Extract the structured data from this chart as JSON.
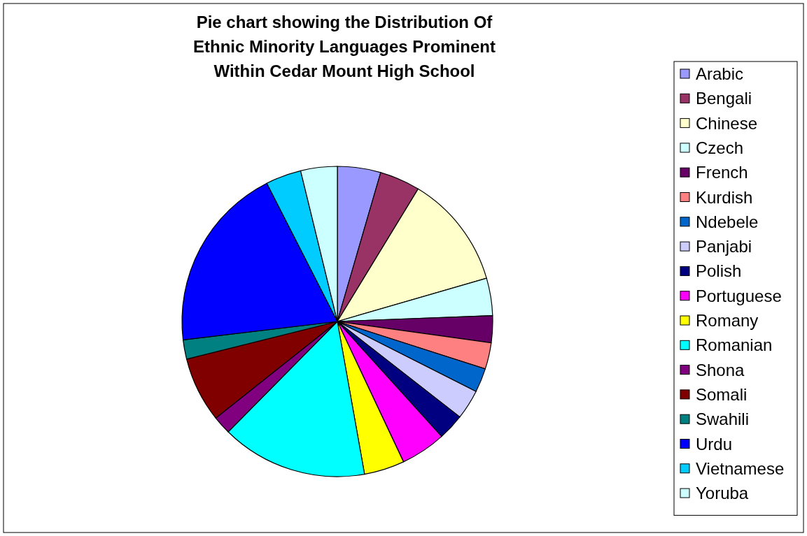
{
  "chart_data": {
    "type": "pie",
    "title": "Pie chart showing the Distribution Of Ethnic Minority Languages Prominent Within Cedar Mount High School",
    "categories": [
      "Arabic",
      "Bengali",
      "Chinese",
      "Czech",
      "French",
      "Kurdish",
      "Ndebele",
      "Panjabi",
      "Polish",
      "Portuguese",
      "Romany",
      "Romanian",
      "Shona",
      "Somali",
      "Swahili",
      "Urdu",
      "Vietnamese",
      "Yoruba"
    ],
    "values": [
      4.5,
      4.2,
      11.8,
      3.9,
      2.8,
      2.75,
      2.5,
      3.1,
      2.75,
      4.7,
      4.2,
      15.2,
      1.9,
      6.8,
      2.0,
      19.4,
      3.7,
      3.8
    ],
    "colors": [
      "#9999ff",
      "#993366",
      "#ffffcc",
      "#ccffff",
      "#660066",
      "#ff8080",
      "#0066cc",
      "#ccccff",
      "#000080",
      "#ff00ff",
      "#ffff00",
      "#00ffff",
      "#800080",
      "#800000",
      "#008080",
      "#0000ff",
      "#00ccff",
      "#ccffff"
    ],
    "legend": "right"
  }
}
